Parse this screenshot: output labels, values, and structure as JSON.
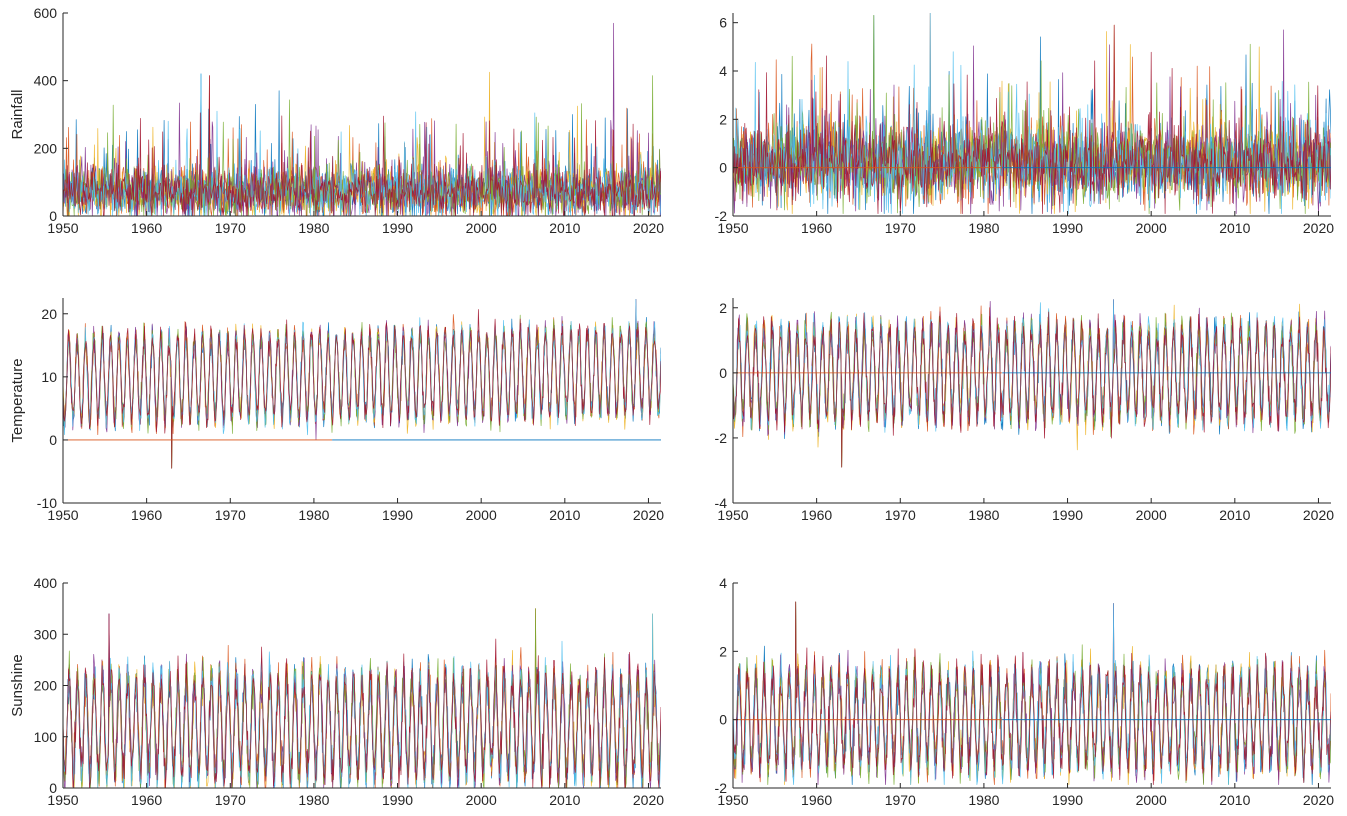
{
  "figure": {
    "series_colors": [
      "#0072BD",
      "#D95319",
      "#EDB120",
      "#7E2F8E",
      "#77AC30",
      "#4DBEEE",
      "#A2142F"
    ]
  },
  "chart_data": [
    {
      "id": "rainfall-raw",
      "type": "line",
      "title": "",
      "xlabel": "",
      "ylabel": "Rainfall",
      "xlim": [
        1950,
        2021.5
      ],
      "ylim": [
        0,
        600
      ],
      "xticks": [
        1950,
        1960,
        1970,
        1980,
        1990,
        2000,
        2010,
        2020
      ],
      "yticks": [
        0,
        200,
        400,
        600
      ],
      "grid": false,
      "series_count": 7,
      "series_note": "many overlapping monthly series",
      "typical_range": [
        20,
        150
      ],
      "peak_values": [
        {
          "x": 1966.5,
          "y": 420
        },
        {
          "x": 1967.5,
          "y": 415
        },
        {
          "x": 2001.0,
          "y": 425
        },
        {
          "x": 2015.8,
          "y": 570
        },
        {
          "x": 2020.5,
          "y": 415
        }
      ]
    },
    {
      "id": "rainfall-standardized",
      "type": "line",
      "title": "",
      "xlabel": "",
      "ylabel": "",
      "xlim": [
        1950,
        2021.5
      ],
      "ylim": [
        -2,
        6.4
      ],
      "xticks": [
        1950,
        1960,
        1970,
        1980,
        1990,
        2000,
        2010,
        2020
      ],
      "yticks": [
        -2,
        0,
        2,
        4,
        6
      ],
      "grid": false,
      "reference_line": 0,
      "series_count": 7,
      "typical_range": [
        -1.5,
        2.0
      ],
      "peak_values": [
        {
          "x": 1966.8,
          "y": 6.3
        },
        {
          "x": 1973.6,
          "y": 6.4
        },
        {
          "x": 1995.6,
          "y": 5.9
        },
        {
          "x": 2015.8,
          "y": 5.7
        }
      ]
    },
    {
      "id": "temperature-raw",
      "type": "line",
      "title": "",
      "xlabel": "",
      "ylabel": "Temperature",
      "xlim": [
        1950,
        2021.5
      ],
      "ylim": [
        -10,
        22.5
      ],
      "xticks": [
        1950,
        1960,
        1970,
        1980,
        1990,
        2000,
        2010,
        2020
      ],
      "yticks": [
        -10,
        0,
        10,
        20
      ],
      "grid": false,
      "reference_line": 0,
      "series_count": 7,
      "seasonal_mean": 9.5,
      "seasonal_amplitude": 6.5,
      "extremes": [
        {
          "x": 1963.0,
          "y": -4.5
        },
        {
          "x": 2018.5,
          "y": 22.3
        }
      ]
    },
    {
      "id": "temperature-standardized",
      "type": "line",
      "title": "",
      "xlabel": "",
      "ylabel": "",
      "xlim": [
        1950,
        2021.5
      ],
      "ylim": [
        -4,
        2.3
      ],
      "xticks": [
        1950,
        1960,
        1970,
        1980,
        1990,
        2000,
        2010,
        2020
      ],
      "yticks": [
        -4,
        -2,
        0,
        2
      ],
      "grid": false,
      "reference_line": 0,
      "series_count": 7,
      "seasonal_mean": 0,
      "seasonal_amplitude": 1.4,
      "extremes": [
        {
          "x": 1963.0,
          "y": -2.9
        },
        {
          "x": 1995.5,
          "y": 2.25
        }
      ]
    },
    {
      "id": "sunshine-raw",
      "type": "line",
      "title": "",
      "xlabel": "",
      "ylabel": "Sunshine",
      "xlim": [
        1950,
        2021.5
      ],
      "ylim": [
        0,
        400
      ],
      "xticks": [
        1950,
        1960,
        1970,
        1980,
        1990,
        2000,
        2010,
        2020
      ],
      "yticks": [
        0,
        100,
        200,
        300,
        400
      ],
      "grid": false,
      "series_count": 7,
      "seasonal_mean": 120,
      "seasonal_amplitude": 95,
      "extremes": [
        {
          "x": 1955.5,
          "y": 340
        },
        {
          "x": 2006.5,
          "y": 350
        },
        {
          "x": 2020.5,
          "y": 340
        }
      ]
    },
    {
      "id": "sunshine-standardized",
      "type": "line",
      "title": "",
      "xlabel": "",
      "ylabel": "",
      "xlim": [
        1950,
        2021.5
      ],
      "ylim": [
        -2,
        4
      ],
      "xticks": [
        1950,
        1960,
        1970,
        1980,
        1990,
        2000,
        2010,
        2020
      ],
      "yticks": [
        -2,
        0,
        2,
        4
      ],
      "grid": false,
      "reference_line": 0,
      "series_count": 7,
      "seasonal_mean": 0,
      "seasonal_amplitude": 1.3,
      "extremes": [
        {
          "x": 1957.5,
          "y": 3.45
        },
        {
          "x": 1995.5,
          "y": 3.4
        }
      ]
    }
  ]
}
